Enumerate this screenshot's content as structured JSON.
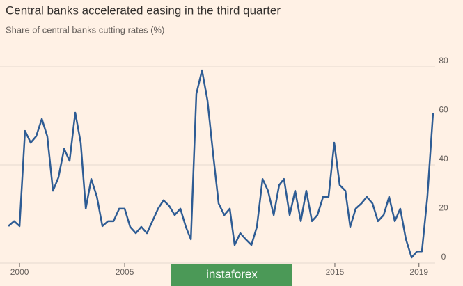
{
  "chart_data": {
    "type": "line",
    "title": "Central banks accelerated easing in the third quarter",
    "subtitle": "Share of central banks cutting rates (%)",
    "watermark": "instaforex",
    "x": [
      1999.47,
      1999.74,
      2000.0,
      2000.26,
      2000.53,
      2000.79,
      2001.06,
      2001.32,
      2001.59,
      2001.85,
      2002.12,
      2002.38,
      2002.65,
      2002.91,
      2003.15,
      2003.41,
      2003.68,
      2003.94,
      2004.21,
      2004.47,
      2004.74,
      2005.0,
      2005.26,
      2005.53,
      2005.79,
      2006.06,
      2006.32,
      2006.59,
      2006.85,
      2007.12,
      2007.38,
      2007.65,
      2007.91,
      2008.15,
      2008.41,
      2008.68,
      2008.94,
      2009.21,
      2009.47,
      2009.74,
      2010.0,
      2010.23,
      2010.5,
      2010.76,
      2011.03,
      2011.29,
      2011.56,
      2011.82,
      2012.09,
      2012.35,
      2012.58,
      2012.85,
      2013.11,
      2013.38,
      2013.64,
      2013.91,
      2014.17,
      2014.44,
      2014.7,
      2014.97,
      2015.23,
      2015.5,
      2015.73,
      2015.99,
      2016.26,
      2016.52,
      2016.79,
      2017.05,
      2017.32,
      2017.58,
      2017.85,
      2018.11,
      2018.38,
      2018.65,
      2018.91,
      2019.14,
      2019.4,
      2019.67
    ],
    "series": [
      {
        "name": "Share of central banks cutting rates",
        "color": "#2e5c94",
        "values": [
          12.8,
          14.8,
          12.8,
          51.6,
          46.8,
          49.4,
          56.5,
          49.4,
          27.2,
          32.6,
          44.3,
          39.4,
          59,
          46.8,
          19.9,
          32,
          24.7,
          12.8,
          14.8,
          14.8,
          19.9,
          19.9,
          12.5,
          9.9,
          12.5,
          9.9,
          14.8,
          19.9,
          23.3,
          21,
          17.3,
          19.9,
          12.5,
          7.4,
          66.7,
          76.3,
          64,
          42,
          22,
          17.3,
          19.9,
          5.1,
          9.9,
          7.4,
          5.1,
          12.5,
          32,
          27.2,
          17.3,
          29.5,
          32,
          17.3,
          27.2,
          14.8,
          27.2,
          14.8,
          17.3,
          24.7,
          24.7,
          46.8,
          29.5,
          27.2,
          12.5,
          19.9,
          22,
          24.7,
          22,
          14.8,
          17.3,
          24.7,
          14.8,
          19.9,
          7.4,
          0,
          2.5,
          2.5,
          24.7,
          59
        ]
      }
    ],
    "xlim": [
      1999.07,
      2019.77
    ],
    "xticks": [
      2000,
      2005,
      2015,
      2019
    ],
    "ylim": [
      0,
      80
    ],
    "yticks": [
      0,
      20,
      40,
      60,
      80
    ],
    "grid": true
  }
}
